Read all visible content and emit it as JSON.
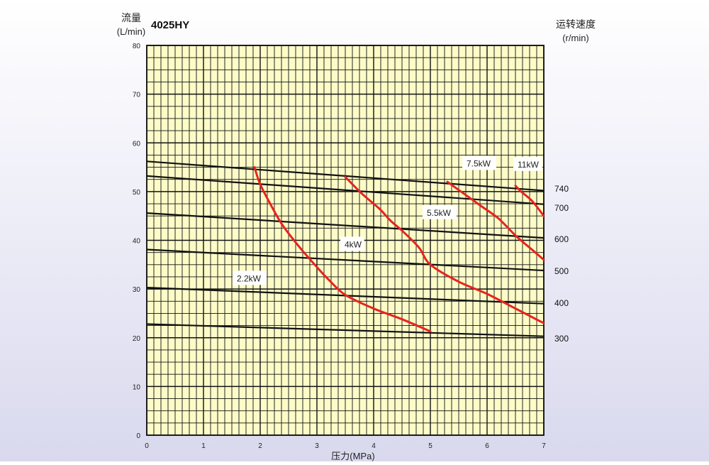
{
  "chart_data": {
    "type": "line",
    "title": "4025HY",
    "ylabel_line1": "流量",
    "ylabel_line2": "(L/min)",
    "xlabel": "压力(MPa)",
    "right_label_line1": "运转速度",
    "right_label_line2": "(r/min)",
    "xlim": [
      0,
      7
    ],
    "ylim": [
      0,
      80
    ],
    "x_ticks": [
      "0",
      "1",
      "2",
      "3",
      "4",
      "5",
      "6",
      "7"
    ],
    "y_ticks": [
      "0",
      "10",
      "20",
      "30",
      "40",
      "50",
      "60",
      "70",
      "80"
    ],
    "grid": true,
    "colors": {
      "plot_background": "#fdfcc8",
      "grid_line": "#111111",
      "speed_line": "#111111",
      "power_curve": "#e8231c"
    },
    "speed_lines": [
      {
        "label": "740",
        "points": [
          [
            0,
            56.2
          ],
          [
            7,
            50.2
          ]
        ]
      },
      {
        "label": "700",
        "points": [
          [
            0,
            53.2
          ],
          [
            7,
            47.4
          ]
        ]
      },
      {
        "label": "600",
        "points": [
          [
            0,
            45.6
          ],
          [
            7,
            40.5
          ]
        ]
      },
      {
        "label": "500",
        "points": [
          [
            0,
            38.1
          ],
          [
            7,
            33.8
          ]
        ]
      },
      {
        "label": "400",
        "points": [
          [
            0,
            30.3
          ],
          [
            7,
            27.0
          ]
        ]
      },
      {
        "label": "300",
        "points": [
          [
            0,
            22.8
          ],
          [
            7,
            20.3
          ]
        ]
      }
    ],
    "power_curves": [
      {
        "label": "2.2kW",
        "label_at": [
          1.55,
          32.0
        ],
        "points": [
          [
            1.9,
            55.0
          ],
          [
            2.0,
            51.5
          ],
          [
            2.2,
            47.0
          ],
          [
            2.4,
            43.0
          ],
          [
            2.7,
            38.5
          ],
          [
            3.0,
            34.5
          ],
          [
            3.2,
            32.0
          ],
          [
            3.5,
            28.8
          ],
          [
            4.0,
            26.0
          ],
          [
            4.5,
            23.8
          ],
          [
            5.0,
            21.3
          ]
        ]
      },
      {
        "label": "4kW",
        "label_at": [
          3.45,
          39.0
        ],
        "points": [
          [
            3.5,
            53.0
          ],
          [
            3.8,
            49.5
          ],
          [
            4.1,
            46.5
          ],
          [
            4.3,
            44.0
          ],
          [
            4.5,
            42.0
          ],
          [
            4.8,
            38.5
          ],
          [
            5.0,
            35.0
          ],
          [
            5.5,
            31.5
          ],
          [
            6.0,
            29.0
          ],
          [
            6.5,
            26.0
          ],
          [
            7.0,
            23.0
          ]
        ]
      },
      {
        "label": "5.5kW",
        "label_at": [
          4.9,
          45.5
        ],
        "points": [
          [
            5.3,
            52.0
          ],
          [
            5.6,
            49.5
          ],
          [
            5.9,
            47.0
          ],
          [
            6.2,
            44.5
          ],
          [
            6.5,
            41.0
          ],
          [
            6.8,
            38.0
          ],
          [
            7.0,
            36.0
          ]
        ]
      },
      {
        "label": "7.5kW",
        "label_at": [
          5.6,
          55.6
        ],
        "points": [
          [
            6.5,
            51.2
          ],
          [
            6.6,
            50.0
          ],
          [
            6.8,
            48.0
          ],
          [
            7.0,
            45.0
          ]
        ]
      },
      {
        "label": "11kW",
        "label_at": [
          6.5,
          55.4
        ],
        "points": []
      }
    ]
  }
}
